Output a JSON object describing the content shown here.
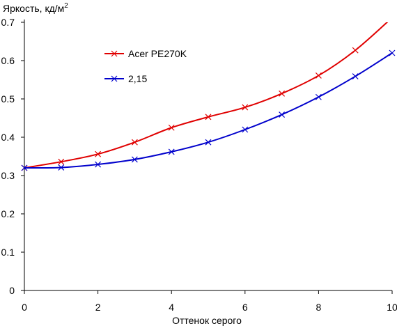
{
  "chart_data": {
    "type": "line",
    "title": "",
    "ylabel": "Яркость, кд/м",
    "ylabel_superscript": "2",
    "xlabel": "Оттенок серого",
    "xlim": [
      0,
      10
    ],
    "ylim": [
      0,
      0.7
    ],
    "x_ticks": [
      0,
      2,
      4,
      6,
      8,
      10
    ],
    "y_ticks": [
      0,
      0.1,
      0.2,
      0.3,
      0.4,
      0.5,
      0.6,
      0.7
    ],
    "x_tick_labels": [
      "0",
      "2",
      "4",
      "6",
      "8",
      "10"
    ],
    "y_tick_labels": [
      "0",
      "0.1",
      "0.2",
      "0.3",
      "0.4",
      "0.5",
      "0.6",
      "0.7"
    ],
    "grid": false,
    "legend_position": "top-left",
    "x": [
      0,
      1,
      2,
      3,
      4,
      5,
      6,
      7,
      8,
      9,
      10
    ],
    "series": [
      {
        "name": "Acer PE270K",
        "color": "#e00000",
        "marker": "x",
        "values": [
          0.32,
          0.336,
          0.356,
          0.387,
          0.425,
          0.453,
          0.478,
          0.514,
          0.561,
          0.627,
          0.712
        ]
      },
      {
        "name": "2,15",
        "color": "#0000cc",
        "marker": "x",
        "values": [
          0.32,
          0.321,
          0.329,
          0.342,
          0.362,
          0.387,
          0.42,
          0.459,
          0.505,
          0.559,
          0.62
        ]
      }
    ]
  }
}
